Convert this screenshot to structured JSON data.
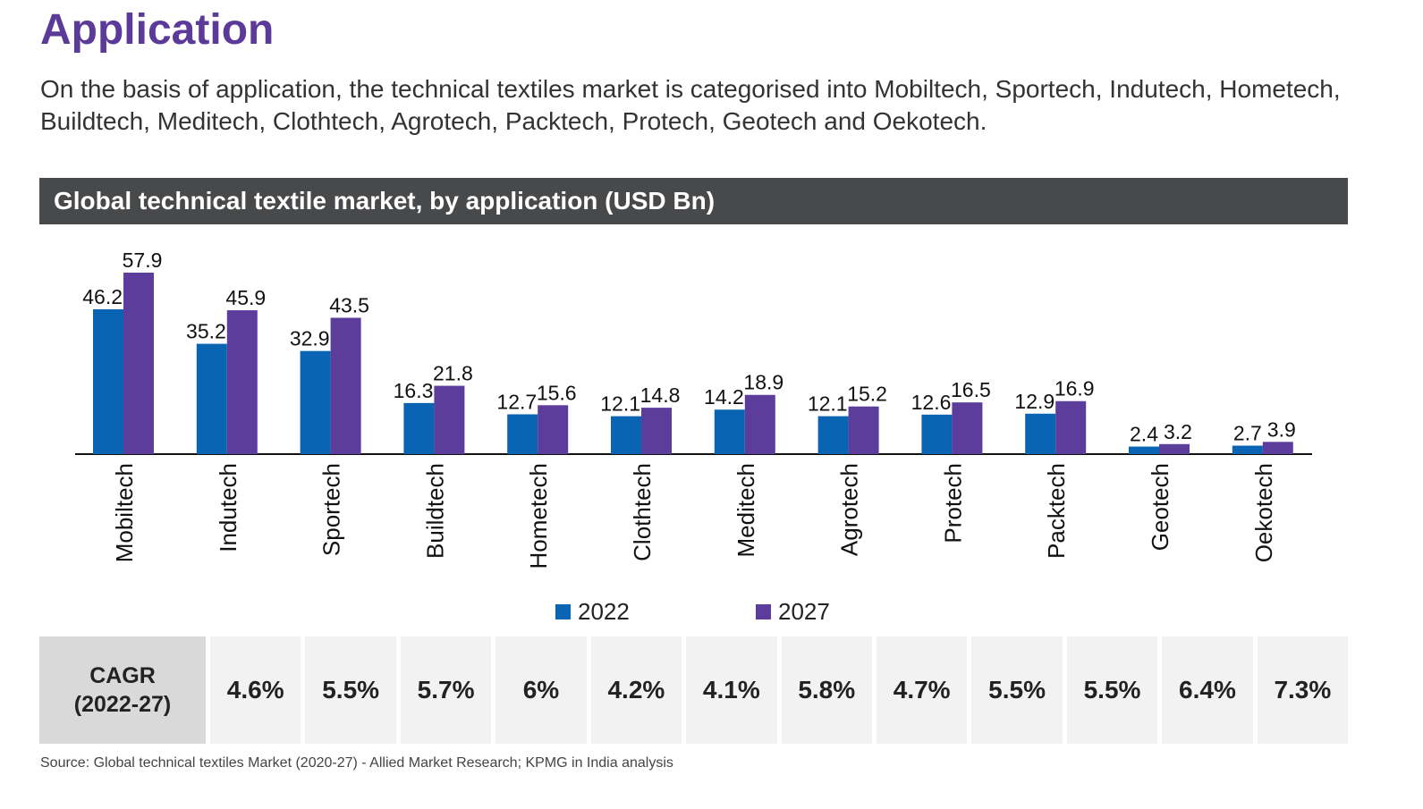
{
  "heading": "Application",
  "intro": "On the basis of application, the technical textiles market is categorised into Mobiltech, Sportech, Indutech, Hometech, Buildtech, Meditech, Clothtech, Agrotech, Packtech, Protech, Geotech and Oekotech.",
  "chart_data": {
    "type": "bar",
    "title": "Global technical textile market, by application (USD Bn)",
    "categories": [
      "Mobiltech",
      "Indutech",
      "Sportech",
      "Buildtech",
      "Hometech",
      "Clothtech",
      "Meditech",
      "Agrotech",
      "Protech",
      "Packtech",
      "Geotech",
      "Oekotech"
    ],
    "series": [
      {
        "name": "2022",
        "color": "#0a64b4",
        "values": [
          46.2,
          35.2,
          32.9,
          16.3,
          12.7,
          12.1,
          14.2,
          12.1,
          12.6,
          12.9,
          2.4,
          2.7
        ]
      },
      {
        "name": "2027",
        "color": "#5c3d9c",
        "values": [
          57.9,
          45.9,
          43.5,
          21.8,
          15.6,
          14.8,
          18.9,
          15.2,
          16.5,
          16.9,
          3.2,
          3.9
        ]
      }
    ],
    "ylim": [
      0,
      60
    ],
    "grid": false,
    "legend": "bottom-center",
    "xlabel": "",
    "ylabel": ""
  },
  "cagr": {
    "label_line1": "CAGR",
    "label_line2": "(2022-27)",
    "values": [
      "4.6%",
      "5.5%",
      "5.7%",
      "6%",
      "4.2%",
      "4.1%",
      "5.8%",
      "4.7%",
      "5.5%",
      "5.5%",
      "6.4%",
      "7.3%"
    ]
  },
  "source": "Source: Global technical textiles Market (2020-27) - Allied Market Research; KPMG in India analysis"
}
